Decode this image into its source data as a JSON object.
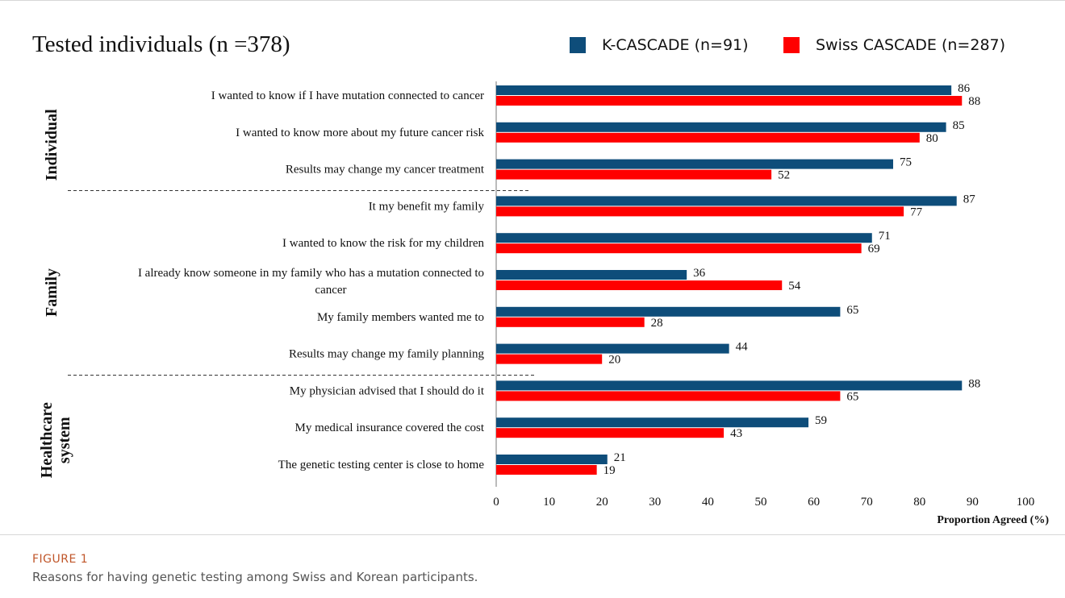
{
  "figure": {
    "label": "FIGURE 1",
    "caption": "Reasons for having genetic testing among Swiss and Korean participants."
  },
  "chart_data": {
    "type": "bar",
    "orientation": "horizontal",
    "title": "Tested individuals (n =378)",
    "xlabel": "Proportion Agreed (%)",
    "xlim": [
      0,
      100
    ],
    "xticks": [
      0,
      10,
      20,
      30,
      40,
      50,
      60,
      70,
      80,
      90,
      100
    ],
    "grid": false,
    "legend_position": "top-right",
    "series": [
      {
        "name": "K-CASCADE (n=91)",
        "color": "#0e4d7a",
        "values": [
          86,
          85,
          75,
          87,
          71,
          36,
          65,
          44,
          88,
          59,
          21
        ]
      },
      {
        "name": "Swiss CASCADE (n=287)",
        "color": "#ff0000",
        "values": [
          88,
          80,
          52,
          77,
          69,
          54,
          28,
          20,
          65,
          43,
          19
        ]
      }
    ],
    "categories": [
      [
        "I wanted to know if I have mutation connected to cancer"
      ],
      [
        "I wanted to know more about my future cancer risk"
      ],
      [
        "Results may change my cancer treatment"
      ],
      [
        "It my benefit my family"
      ],
      [
        "I wanted to know the risk for my children"
      ],
      [
        "I already know someone in my family who has a mutation connected to",
        "cancer"
      ],
      [
        "My family members wanted me to"
      ],
      [
        "Results may change my family planning"
      ],
      [
        "My physician advised that I should do it"
      ],
      [
        "My medical insurance covered the cost"
      ],
      [
        "The genetic testing center is close to home"
      ]
    ],
    "groups": [
      {
        "lines": [
          "Individual"
        ],
        "count": 3
      },
      {
        "lines": [
          "Family"
        ],
        "count": 5
      },
      {
        "lines": [
          "Healthcare",
          "system"
        ],
        "count": 3
      }
    ]
  }
}
